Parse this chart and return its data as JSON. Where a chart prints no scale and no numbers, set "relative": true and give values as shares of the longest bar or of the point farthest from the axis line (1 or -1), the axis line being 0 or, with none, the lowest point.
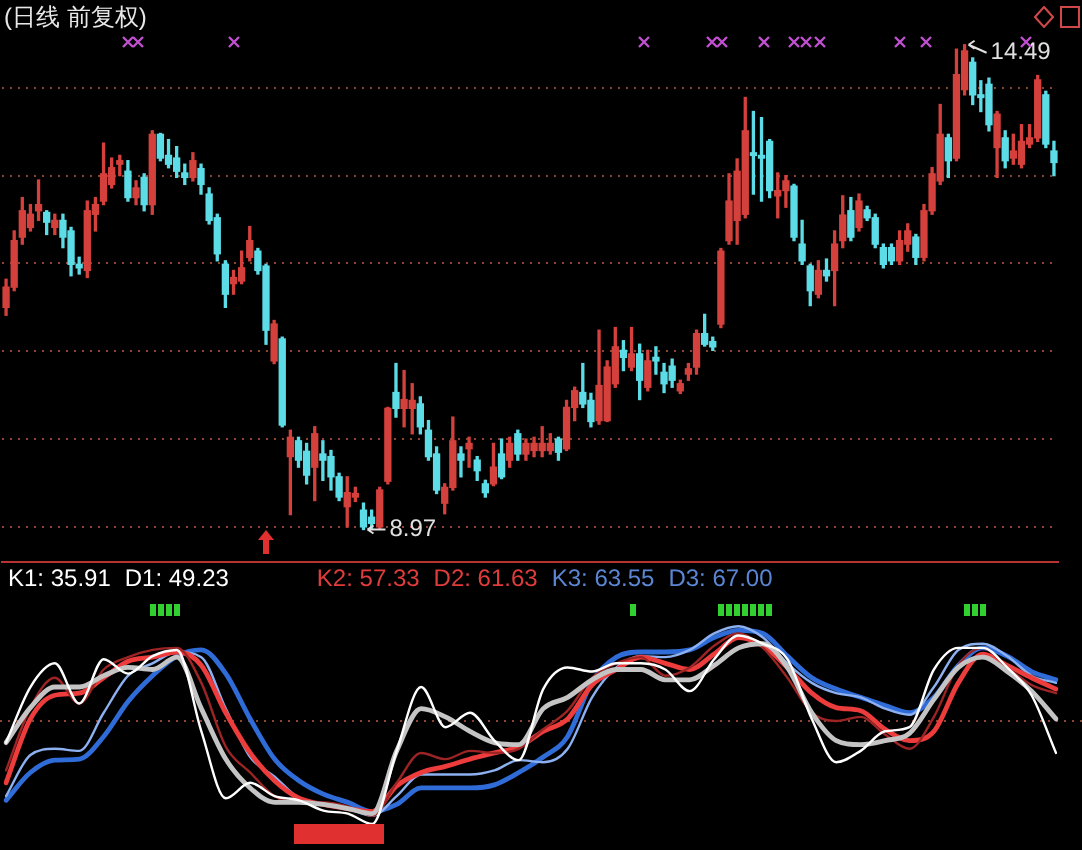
{
  "chart_data": [
    {
      "type": "candlestick",
      "title": "(日线 前复权)",
      "categories": [
        null,
        null,
        null,
        null,
        null,
        null,
        null,
        null,
        null,
        null,
        null,
        null,
        null,
        null,
        null,
        null,
        null,
        null,
        null,
        null,
        null,
        null,
        null,
        null,
        null,
        null,
        null,
        null,
        null,
        null,
        null,
        null,
        null,
        null,
        null,
        null,
        null,
        null,
        null,
        null,
        null,
        null,
        null,
        null,
        null,
        null,
        null,
        null,
        null,
        null,
        null,
        null,
        null,
        null,
        null,
        null,
        null,
        null,
        null,
        null,
        null,
        null,
        null,
        null,
        null,
        null,
        null,
        null,
        null,
        null,
        null,
        null,
        null,
        null,
        null,
        null,
        null,
        null,
        null,
        null,
        null,
        null,
        null,
        null,
        null,
        null,
        null,
        null,
        null,
        null,
        null,
        null,
        null,
        null,
        null,
        null,
        null,
        null,
        null,
        null,
        null,
        null,
        null,
        null,
        null,
        null,
        null,
        null,
        null,
        null,
        null,
        null,
        null,
        null,
        null,
        null,
        null,
        null,
        null,
        null,
        null,
        null,
        null,
        null,
        null,
        null,
        null,
        null,
        null,
        null
      ],
      "ohlc": [
        [
          11.5,
          11.82,
          11.41,
          11.73
        ],
        [
          11.73,
          12.37,
          11.69,
          12.26
        ],
        [
          12.3,
          12.75,
          12.22,
          12.6
        ],
        [
          12.41,
          12.67,
          12.37,
          12.56
        ],
        [
          12.6,
          12.95,
          12.49,
          12.67
        ],
        [
          12.58,
          12.6,
          12.33,
          12.47
        ],
        [
          12.41,
          12.56,
          12.33,
          12.49
        ],
        [
          12.49,
          12.56,
          12.18,
          12.3
        ],
        [
          12.37,
          12.41,
          11.86,
          11.99
        ],
        [
          11.99,
          12.07,
          11.88,
          11.95
        ],
        [
          11.92,
          12.71,
          11.84,
          12.6
        ],
        [
          12.56,
          12.75,
          12.37,
          12.67
        ],
        [
          12.71,
          13.37,
          12.67,
          13.02
        ],
        [
          12.9,
          13.2,
          12.86,
          13.09
        ],
        [
          13.13,
          13.23,
          13.0,
          13.17
        ],
        [
          13.05,
          13.17,
          12.71,
          12.75
        ],
        [
          12.75,
          12.94,
          12.67,
          12.86
        ],
        [
          12.98,
          13.02,
          12.6,
          12.67
        ],
        [
          12.67,
          13.51,
          12.56,
          13.47
        ],
        [
          13.47,
          13.48,
          13.17,
          13.2
        ],
        [
          13.23,
          13.41,
          13.09,
          13.13
        ],
        [
          13.2,
          13.33,
          12.98,
          13.05
        ],
        [
          13.03,
          13.13,
          12.9,
          12.98
        ],
        [
          12.98,
          13.26,
          12.94,
          13.17
        ],
        [
          13.08,
          13.13,
          12.79,
          12.9
        ],
        [
          12.79,
          12.86,
          12.45,
          12.49
        ],
        [
          12.52,
          12.56,
          12.03,
          12.11
        ],
        [
          11.99,
          12.03,
          11.5,
          11.65
        ],
        [
          11.77,
          11.92,
          11.65,
          11.84
        ],
        [
          11.8,
          12.14,
          11.77,
          11.95
        ],
        [
          12.07,
          12.42,
          12.03,
          12.26
        ],
        [
          12.14,
          12.17,
          11.88,
          11.92
        ],
        [
          11.97,
          11.99,
          11.08,
          11.24
        ],
        [
          10.89,
          11.35,
          10.86,
          11.31
        ],
        [
          11.14,
          11.16,
          10.14,
          10.16
        ],
        [
          9.8,
          10.1,
          9.14,
          10.02
        ],
        [
          9.98,
          10.02,
          9.68,
          9.76
        ],
        [
          9.86,
          9.95,
          9.49,
          9.59
        ],
        [
          9.68,
          10.14,
          9.3,
          10.06
        ],
        [
          9.83,
          9.98,
          9.53,
          9.76
        ],
        [
          9.8,
          9.87,
          9.42,
          9.57
        ],
        [
          9.57,
          9.61,
          9.3,
          9.34
        ],
        [
          9.23,
          9.57,
          9.0,
          9.39
        ],
        [
          9.34,
          9.45,
          9.29,
          9.38
        ],
        [
          9.19,
          9.27,
          8.97,
          9.0
        ],
        [
          9.11,
          9.19,
          8.98,
          9.04
        ],
        [
          9.0,
          9.45,
          8.98,
          9.42
        ],
        [
          9.52,
          10.36,
          9.49,
          10.35
        ],
        [
          10.53,
          10.86,
          10.25,
          10.35
        ],
        [
          10.35,
          10.78,
          10.14,
          10.45
        ],
        [
          10.35,
          10.63,
          10.06,
          10.44
        ],
        [
          10.4,
          10.48,
          10.06,
          10.14
        ],
        [
          10.1,
          10.21,
          9.76,
          9.8
        ],
        [
          9.83,
          9.91,
          9.38,
          9.42
        ],
        [
          9.27,
          9.49,
          9.15,
          9.45
        ],
        [
          9.45,
          10.25,
          9.42,
          9.98
        ],
        [
          9.83,
          9.91,
          9.57,
          9.76
        ],
        [
          9.89,
          10.02,
          9.68,
          9.95
        ],
        [
          9.76,
          9.8,
          9.53,
          9.64
        ],
        [
          9.49,
          9.53,
          9.34,
          9.39
        ],
        [
          9.49,
          9.95,
          9.47,
          9.68
        ],
        [
          9.83,
          10.0,
          9.55,
          9.57
        ],
        [
          9.76,
          10.02,
          9.68,
          9.95
        ],
        [
          10.06,
          10.1,
          9.76,
          9.83
        ],
        [
          9.83,
          10.0,
          9.76,
          9.95
        ],
        [
          9.87,
          10.02,
          9.8,
          9.95
        ],
        [
          9.87,
          10.14,
          9.8,
          9.95
        ],
        [
          9.87,
          10.06,
          9.83,
          9.95
        ],
        [
          10.0,
          10.02,
          9.76,
          9.85
        ],
        [
          9.89,
          10.44,
          9.87,
          10.36
        ],
        [
          10.36,
          10.59,
          10.21,
          10.55
        ],
        [
          10.53,
          10.86,
          10.36,
          10.4
        ],
        [
          10.44,
          10.52,
          10.14,
          10.2
        ],
        [
          10.21,
          11.24,
          10.17,
          10.61
        ],
        [
          10.21,
          10.89,
          10.2,
          10.82
        ],
        [
          10.63,
          11.27,
          10.59,
          11.05
        ],
        [
          11.01,
          11.12,
          10.78,
          10.93
        ],
        [
          10.82,
          11.27,
          10.78,
          10.97
        ],
        [
          10.97,
          11.08,
          10.45,
          10.67
        ],
        [
          10.59,
          11.01,
          10.55,
          10.89
        ],
        [
          10.93,
          11.05,
          10.74,
          10.89
        ],
        [
          10.76,
          10.86,
          10.53,
          10.63
        ],
        [
          10.83,
          10.91,
          10.59,
          10.67
        ],
        [
          10.55,
          10.67,
          10.52,
          10.63
        ],
        [
          10.74,
          10.86,
          10.67,
          10.8
        ],
        [
          10.82,
          11.24,
          10.74,
          11.2
        ],
        [
          11.2,
          11.42,
          11.06,
          11.08
        ],
        [
          11.11,
          11.16,
          11.01,
          11.05
        ],
        [
          11.31,
          12.17,
          11.27,
          12.14
        ],
        [
          12.26,
          13.02,
          12.22,
          12.71
        ],
        [
          12.49,
          13.19,
          12.22,
          13.05
        ],
        [
          12.56,
          13.89,
          12.52,
          13.51
        ],
        [
          13.26,
          13.73,
          12.79,
          13.23
        ],
        [
          13.23,
          13.66,
          12.71,
          13.2
        ],
        [
          13.39,
          13.41,
          12.75,
          12.83
        ],
        [
          12.77,
          13.03,
          12.52,
          12.83
        ],
        [
          12.83,
          13.0,
          12.64,
          12.94
        ],
        [
          12.88,
          12.9,
          12.26,
          12.3
        ],
        [
          12.22,
          12.49,
          11.99,
          12.03
        ],
        [
          11.97,
          11.99,
          11.52,
          11.69
        ],
        [
          11.65,
          12.03,
          11.61,
          11.92
        ],
        [
          11.92,
          12.05,
          11.8,
          11.86
        ],
        [
          11.92,
          12.37,
          11.52,
          12.22
        ],
        [
          12.26,
          12.77,
          12.18,
          12.55
        ],
        [
          12.6,
          12.75,
          12.26,
          12.3
        ],
        [
          12.41,
          12.79,
          12.37,
          12.71
        ],
        [
          12.61,
          12.65,
          12.49,
          12.52
        ],
        [
          12.52,
          12.56,
          12.18,
          12.22
        ],
        [
          12.18,
          12.22,
          11.95,
          11.99
        ],
        [
          12.18,
          12.22,
          11.99,
          12.03
        ],
        [
          12.03,
          12.37,
          11.99,
          12.26
        ],
        [
          12.22,
          12.45,
          12.14,
          12.37
        ],
        [
          12.3,
          12.33,
          11.99,
          12.07
        ],
        [
          12.07,
          12.67,
          12.03,
          12.6
        ],
        [
          12.6,
          13.09,
          12.56,
          13.02
        ],
        [
          12.94,
          13.81,
          12.9,
          13.47
        ],
        [
          13.43,
          13.47,
          12.98,
          13.17
        ],
        [
          13.2,
          14.44,
          13.17,
          14.15
        ],
        [
          13.98,
          14.49,
          13.92,
          14.42
        ],
        [
          14.29,
          14.34,
          13.81,
          13.92
        ],
        [
          13.92,
          14.08,
          13.73,
          13.89
        ],
        [
          14.04,
          14.11,
          13.51,
          13.58
        ],
        [
          13.32,
          13.73,
          12.98,
          13.7
        ],
        [
          13.43,
          13.51,
          13.09,
          13.17
        ],
        [
          13.2,
          13.47,
          13.13,
          13.28
        ],
        [
          13.13,
          13.58,
          13.09,
          13.39
        ],
        [
          13.36,
          13.58,
          13.32,
          13.43
        ],
        [
          13.43,
          14.14,
          13.39,
          14.09
        ],
        [
          13.92,
          13.96,
          13.32,
          13.36
        ],
        [
          13.28,
          13.39,
          13.0,
          13.15
        ]
      ],
      "colors": [
        "#d4403c",
        "#d4403c",
        "#d4403c",
        "#d4403c",
        "#d4403c",
        "#5cdce6",
        "#d4403c",
        "#5cdce6",
        "#5cdce6",
        "#5cdce6",
        "#d4403c",
        "#d4403c",
        "#d4403c",
        "#d4403c",
        "#d4403c",
        "#5cdce6",
        "#d4403c",
        "#5cdce6",
        "#d4403c",
        "#5cdce6",
        "#5cdce6",
        "#5cdce6",
        "#5cdce6",
        "#d4403c",
        "#5cdce6",
        "#5cdce6",
        "#5cdce6",
        "#5cdce6",
        "#d4403c",
        "#d4403c",
        "#d4403c",
        "#5cdce6",
        "#5cdce6",
        "#d4403c",
        "#5cdce6",
        "#d4403c",
        "#5cdce6",
        "#5cdce6",
        "#d4403c",
        "#5cdce6",
        "#5cdce6",
        "#5cdce6",
        "#d4403c",
        "#d4403c",
        "#5cdce6",
        "#5cdce6",
        "#d4403c",
        "#d4403c",
        "#5cdce6",
        "#d4403c",
        "#d4403c",
        "#5cdce6",
        "#5cdce6",
        "#5cdce6",
        "#d4403c",
        "#d4403c",
        "#5cdce6",
        "#d4403c",
        "#5cdce6",
        "#5cdce6",
        "#d4403c",
        "#5cdce6",
        "#d4403c",
        "#5cdce6",
        "#d4403c",
        "#d4403c",
        "#d4403c",
        "#d4403c",
        "#5cdce6",
        "#d4403c",
        "#d4403c",
        "#5cdce6",
        "#5cdce6",
        "#d4403c",
        "#d4403c",
        "#d4403c",
        "#5cdce6",
        "#d4403c",
        "#5cdce6",
        "#d4403c",
        "#5cdce6",
        "#5cdce6",
        "#5cdce6",
        "#d4403c",
        "#d4403c",
        "#d4403c",
        "#5cdce6",
        "#5cdce6",
        "#d4403c",
        "#d4403c",
        "#d4403c",
        "#d4403c",
        "#5cdce6",
        "#5cdce6",
        "#5cdce6",
        "#d4403c",
        "#d4403c",
        "#5cdce6",
        "#5cdce6",
        "#5cdce6",
        "#d4403c",
        "#5cdce6",
        "#d4403c",
        "#d4403c",
        "#5cdce6",
        "#d4403c",
        "#5cdce6",
        "#5cdce6",
        "#5cdce6",
        "#5cdce6",
        "#d4403c",
        "#d4403c",
        "#5cdce6",
        "#d4403c",
        "#d4403c",
        "#d4403c",
        "#5cdce6",
        "#d4403c",
        "#d4403c",
        "#5cdce6",
        "#5cdce6",
        "#5cdce6",
        "#d4403c",
        "#5cdce6",
        "#d4403c",
        "#d4403c",
        "#d4403c",
        "#d4403c",
        "#5cdce6",
        "#5cdce6"
      ],
      "ylim": [
        8.6,
        15
      ],
      "yticks": [
        {
          "value": 9,
          "label": null
        },
        {
          "value": 10,
          "label": null
        },
        {
          "value": 11,
          "label": null
        },
        {
          "value": 12,
          "label": null
        },
        {
          "value": 13,
          "label": null
        },
        {
          "value": 14,
          "label": null
        }
      ],
      "grid": "y",
      "tick_labels": false,
      "annotations": [
        "14.49",
        "8.97"
      ]
    },
    {
      "type": "other",
      "annotations": [
        "K1: 35.91",
        "D1: 49.23",
        "K2: 57.33",
        "D2: 61.63",
        "K3: 63.55",
        "D3: 67.00"
      ],
      "colors": [
        "#ffffff",
        "#ffffff",
        "#e03c3c",
        "#e03c3c",
        "#5b86d4",
        "#5b86d4"
      ]
    },
    {
      "type": "line",
      "relative": true,
      "categories": [
        null,
        null,
        null,
        null,
        null,
        null,
        null,
        null,
        null,
        null,
        null,
        null,
        null,
        null,
        null,
        null,
        null,
        null,
        null,
        null,
        null,
        null,
        null,
        null,
        null,
        null,
        null,
        null,
        null,
        null,
        null,
        null,
        null,
        null,
        null,
        null,
        null,
        null,
        null,
        null,
        null,
        null,
        null,
        null
      ],
      "series": [
        {
          "color": "#ffffff",
          "values": [
            -0.21,
            0.33,
            0.56,
            0.17,
            0.6,
            0.46,
            0.63,
            0.69,
            -0.1,
            -0.75,
            -0.6,
            -0.73,
            -0.77,
            -0.87,
            -0.9,
            -1,
            -0.29,
            0.33,
            -0.06,
            0.08,
            -0.19,
            -0.38,
            0.31,
            0.52,
            0.48,
            0.56,
            0.56,
            0.5,
            0.29,
            0.6,
            0.83,
            0.75,
            0.6,
            0.02,
            -0.4,
            -0.29,
            -0.1,
            -0.06,
            0.5,
            0.71,
            0.71,
            0.52,
            0.25,
            -0.31
          ]
        },
        {
          "color": "#c4c4c4",
          "values": [
            -0.21,
            0.13,
            0.33,
            0.33,
            0.44,
            0.52,
            0.5,
            0.62,
            0.12,
            -0.37,
            -0.65,
            -0.79,
            -0.79,
            -0.81,
            -0.85,
            -0.9,
            -0.29,
            0.12,
            0.04,
            -0.1,
            -0.21,
            -0.23,
            0.12,
            0.23,
            0.4,
            0.5,
            0.5,
            0.4,
            0.4,
            0.54,
            0.71,
            0.75,
            0.52,
            0.08,
            -0.19,
            -0.23,
            -0.19,
            -0.12,
            0.21,
            0.52,
            0.62,
            0.48,
            0.29,
            0.02
          ]
        },
        {
          "color": "#9c2424",
          "values": [
            -0.48,
            0.13,
            0.42,
            0.17,
            0.5,
            0.62,
            0.69,
            0.71,
            0.37,
            -0.25,
            -0.5,
            -0.73,
            -0.79,
            -0.79,
            -0.83,
            -0.92,
            -0.6,
            -0.31,
            -0.37,
            -0.29,
            -0.31,
            -0.27,
            -0.08,
            0.1,
            0.42,
            0.56,
            0.62,
            0.44,
            0.52,
            0.73,
            0.85,
            0.71,
            0.42,
            0.08,
            0,
            0.04,
            -0.13,
            -0.27,
            0.04,
            0.54,
            0.71,
            0.52,
            0.35,
            0.27
          ]
        },
        {
          "color": "#ec3c3c",
          "values": [
            -0.6,
            0.02,
            0.25,
            0.27,
            0.42,
            0.58,
            0.62,
            0.67,
            0.54,
            0.08,
            -0.31,
            -0.58,
            -0.75,
            -0.81,
            -0.85,
            -0.88,
            -0.63,
            -0.5,
            -0.44,
            -0.37,
            -0.31,
            -0.25,
            -0.1,
            0.02,
            0.35,
            0.5,
            0.62,
            0.56,
            0.5,
            0.65,
            0.81,
            0.73,
            0.52,
            0.27,
            0.13,
            0.1,
            -0.08,
            -0.19,
            -0.1,
            0.37,
            0.65,
            0.54,
            0.42,
            0.31
          ]
        },
        {
          "color": "#8cb0f0",
          "values": [
            -0.73,
            -0.33,
            -0.27,
            -0.29,
            0.08,
            0.44,
            0.56,
            0.67,
            0.62,
            0.12,
            -0.35,
            -0.54,
            -0.75,
            -0.81,
            -0.85,
            -0.92,
            -0.73,
            -0.52,
            -0.52,
            -0.52,
            -0.48,
            -0.38,
            -0.4,
            -0.27,
            0.23,
            0.52,
            0.63,
            0.62,
            0.69,
            0.85,
            0.92,
            0.81,
            0.56,
            0.37,
            0.27,
            0.23,
            0.12,
            0.06,
            0.33,
            0.69,
            0.75,
            0.63,
            0.44,
            0.37
          ]
        },
        {
          "color": "#2f6cd8",
          "values": [
            -0.77,
            -0.5,
            -0.38,
            -0.37,
            -0.15,
            0.19,
            0.44,
            0.63,
            0.69,
            0.46,
            0.02,
            -0.37,
            -0.58,
            -0.71,
            -0.79,
            -0.88,
            -0.81,
            -0.65,
            -0.65,
            -0.65,
            -0.62,
            -0.5,
            -0.35,
            -0.15,
            0.38,
            0.62,
            0.67,
            0.67,
            0.69,
            0.81,
            0.88,
            0.85,
            0.63,
            0.42,
            0.31,
            0.23,
            0.15,
            0.08,
            0.23,
            0.54,
            0.71,
            0.63,
            0.48,
            0.4
          ]
        }
      ],
      "ref_lines": [
        {
          "axis": "y",
          "value": 0,
          "line_style": "dotted",
          "color": "#8c4630"
        }
      ]
    }
  ]
}
